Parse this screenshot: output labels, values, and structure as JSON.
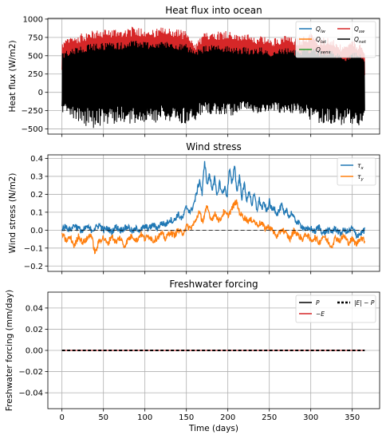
{
  "chart_data": [
    {
      "type": "line",
      "title": "Heat flux into ocean",
      "xlabel": "",
      "ylabel": "Heat flux (W/m2)",
      "xlim": [
        -17,
        383
      ],
      "ylim": [
        -570,
        1010
      ],
      "xticks": [
        0,
        50,
        100,
        150,
        200,
        250,
        300,
        350
      ],
      "yticks": [
        -500,
        -250,
        0,
        250,
        500,
        750,
        1000
      ],
      "grid": true,
      "legend": "top-right",
      "legend_columns": 2,
      "series": [
        {
          "name": "Q_lw",
          "label": "Q",
          "sub": "lw",
          "color": "#1f77b4",
          "band": false,
          "x": [
            0,
            365
          ],
          "y": [
            0,
            0
          ]
        },
        {
          "name": "Q_lat",
          "label": "Q",
          "sub": "lat",
          "color": "#ff7f0e",
          "band": false,
          "x": [
            0,
            365
          ],
          "y": [
            0,
            0
          ]
        },
        {
          "name": "Q_sens",
          "label": "Q",
          "sub": "sens",
          "color": "#2ca02c",
          "band": false,
          "x": [
            0,
            365
          ],
          "y": [
            0,
            0
          ]
        },
        {
          "name": "Q_sw",
          "label": "Q",
          "sub": "sw",
          "color": "#d62728",
          "band": true,
          "x": [
            0,
            10,
            20,
            30,
            40,
            50,
            60,
            70,
            80,
            90,
            100,
            110,
            120,
            130,
            140,
            150,
            160,
            170,
            180,
            190,
            200,
            210,
            220,
            230,
            240,
            250,
            260,
            270,
            280,
            290,
            300,
            310,
            320,
            330,
            340,
            350,
            360,
            365
          ],
          "y": [
            690,
            760,
            790,
            830,
            850,
            860,
            880,
            870,
            890,
            900,
            890,
            860,
            890,
            880,
            870,
            840,
            650,
            800,
            850,
            840,
            860,
            790,
            830,
            740,
            800,
            720,
            760,
            780,
            740,
            760,
            810,
            740,
            760,
            700,
            620,
            720,
            650,
            560
          ]
        },
        {
          "name": "Q_net",
          "label": "Q",
          "sub": "net",
          "color": "#000000",
          "band": true,
          "x": [
            0,
            10,
            20,
            30,
            40,
            50,
            60,
            70,
            80,
            90,
            100,
            110,
            120,
            130,
            140,
            150,
            160,
            170,
            180,
            190,
            200,
            210,
            220,
            230,
            240,
            250,
            260,
            270,
            280,
            290,
            300,
            310,
            320,
            330,
            340,
            350,
            360,
            365
          ],
          "y": [
            540,
            600,
            630,
            650,
            670,
            680,
            700,
            680,
            700,
            720,
            700,
            690,
            700,
            700,
            680,
            660,
            560,
            630,
            650,
            640,
            650,
            610,
            620,
            580,
            620,
            560,
            600,
            610,
            580,
            600,
            630,
            580,
            590,
            550,
            480,
            560,
            520,
            450
          ],
          "y_low": [
            -280,
            -350,
            -430,
            -470,
            -500,
            -440,
            -450,
            -420,
            -440,
            -430,
            -430,
            -440,
            -350,
            -420,
            -450,
            -460,
            -390,
            -280,
            -300,
            -310,
            -340,
            -300,
            -230,
            -270,
            -300,
            -270,
            -290,
            -300,
            -290,
            -300,
            -390,
            -440,
            -420,
            -450,
            -480,
            -500,
            -440,
            -320
          ]
        }
      ]
    },
    {
      "type": "line",
      "title": "Wind stress",
      "xlabel": "",
      "ylabel": "Wind stress (N/m2)",
      "xlim": [
        -17,
        383
      ],
      "ylim": [
        -0.23,
        0.42
      ],
      "xticks": [
        0,
        50,
        100,
        150,
        200,
        250,
        300,
        350
      ],
      "yticks": [
        -0.2,
        -0.1,
        0.0,
        0.1,
        0.2,
        0.3,
        0.4
      ],
      "grid": true,
      "legend": "top-right",
      "legend_columns": 1,
      "series": [
        {
          "name": "tau_x",
          "label": "τ",
          "sub": "x",
          "color": "#1f77b4",
          "x": [
            0,
            5,
            10,
            15,
            20,
            25,
            30,
            35,
            40,
            45,
            50,
            55,
            60,
            65,
            70,
            75,
            80,
            85,
            90,
            95,
            100,
            105,
            110,
            115,
            120,
            125,
            130,
            135,
            140,
            145,
            150,
            155,
            160,
            163,
            166,
            169,
            172,
            175,
            178,
            181,
            184,
            187,
            190,
            193,
            196,
            199,
            202,
            205,
            208,
            211,
            214,
            217,
            220,
            223,
            226,
            229,
            232,
            235,
            238,
            241,
            244,
            247,
            250,
            253,
            256,
            259,
            262,
            265,
            268,
            271,
            274,
            277,
            280,
            285,
            290,
            295,
            300,
            305,
            310,
            315,
            320,
            325,
            330,
            335,
            340,
            345,
            350,
            355,
            360,
            365
          ],
          "y": [
            0.01,
            0.02,
            0.0,
            0.03,
            0.01,
            -0.01,
            0.02,
            0.0,
            0.01,
            0.03,
            0.0,
            0.01,
            -0.01,
            0.02,
            0.0,
            0.01,
            0.02,
            -0.01,
            0.01,
            0.0,
            0.02,
            0.01,
            0.03,
            0.01,
            0.04,
            0.03,
            0.06,
            0.05,
            0.09,
            0.06,
            0.13,
            0.1,
            0.16,
            0.22,
            0.28,
            0.2,
            0.39,
            0.25,
            0.31,
            0.23,
            0.29,
            0.18,
            0.27,
            0.2,
            0.24,
            0.19,
            0.34,
            0.25,
            0.37,
            0.21,
            0.3,
            0.18,
            0.26,
            0.16,
            0.22,
            0.14,
            0.2,
            0.11,
            0.17,
            0.12,
            0.15,
            0.1,
            0.16,
            0.11,
            0.13,
            0.09,
            0.11,
            0.14,
            0.08,
            0.12,
            0.07,
            0.1,
            0.06,
            0.04,
            0.02,
            0.0,
            0.01,
            -0.01,
            0.02,
            -0.02,
            0.0,
            -0.01,
            0.01,
            -0.02,
            0.0,
            -0.01,
            0.01,
            -0.03,
            -0.02,
            0.0
          ]
        },
        {
          "name": "tau_y",
          "label": "τ",
          "sub": "y",
          "color": "#ff7f0e",
          "x": [
            0,
            5,
            10,
            15,
            20,
            25,
            30,
            35,
            40,
            45,
            50,
            55,
            60,
            65,
            70,
            75,
            80,
            85,
            90,
            95,
            100,
            105,
            110,
            115,
            120,
            125,
            130,
            135,
            140,
            145,
            150,
            155,
            160,
            165,
            170,
            175,
            180,
            185,
            190,
            195,
            200,
            205,
            210,
            215,
            220,
            225,
            230,
            235,
            240,
            245,
            250,
            255,
            260,
            265,
            270,
            275,
            280,
            285,
            290,
            295,
            300,
            305,
            310,
            315,
            320,
            325,
            330,
            335,
            340,
            345,
            350,
            355,
            360,
            365
          ],
          "y": [
            -0.02,
            -0.06,
            -0.04,
            -0.09,
            -0.03,
            -0.07,
            -0.05,
            -0.02,
            -0.13,
            -0.06,
            -0.04,
            -0.08,
            -0.03,
            -0.07,
            -0.04,
            -0.09,
            -0.05,
            -0.03,
            -0.06,
            -0.02,
            -0.05,
            -0.03,
            -0.06,
            -0.04,
            -0.02,
            -0.05,
            -0.01,
            -0.03,
            0.0,
            -0.02,
            0.02,
            0.01,
            0.04,
            0.1,
            0.05,
            0.13,
            0.06,
            0.09,
            0.05,
            0.1,
            0.08,
            0.12,
            0.16,
            0.09,
            0.07,
            0.05,
            0.06,
            0.03,
            0.04,
            0.01,
            0.02,
            -0.01,
            -0.04,
            0.01,
            -0.02,
            -0.05,
            0.0,
            -0.03,
            -0.05,
            -0.02,
            -0.06,
            -0.04,
            -0.07,
            -0.03,
            -0.06,
            -0.09,
            -0.04,
            -0.06,
            -0.03,
            -0.07,
            -0.05,
            -0.08,
            -0.04,
            -0.06
          ]
        }
      ]
    },
    {
      "type": "line",
      "title": "Freshwater forcing",
      "xlabel": "Time (days)",
      "ylabel": "Freshwater forcing (mm/day)",
      "xlim": [
        -17,
        383
      ],
      "ylim": [
        -0.055,
        0.055
      ],
      "xticks": [
        0,
        50,
        100,
        150,
        200,
        250,
        300,
        350
      ],
      "yticks": [
        -0.04,
        -0.02,
        0.0,
        0.02,
        0.04
      ],
      "grid": true,
      "legend": "top-right",
      "legend_columns": 2,
      "series": [
        {
          "name": "P",
          "label": "P",
          "sub": "",
          "color": "#000000",
          "width": 1,
          "dash": false,
          "x": [
            0,
            365
          ],
          "y": [
            0,
            0
          ]
        },
        {
          "name": "-E",
          "label": "−E",
          "sub": "",
          "color": "#d62728",
          "width": 1,
          "dash": false,
          "x": [
            0,
            365
          ],
          "y": [
            0,
            0
          ]
        },
        {
          "name": "|E| - P",
          "label": "|E| − P",
          "sub": "",
          "color": "#000000",
          "width": 2,
          "dash": true,
          "x": [
            0,
            365
          ],
          "y": [
            0,
            0
          ]
        }
      ]
    }
  ]
}
